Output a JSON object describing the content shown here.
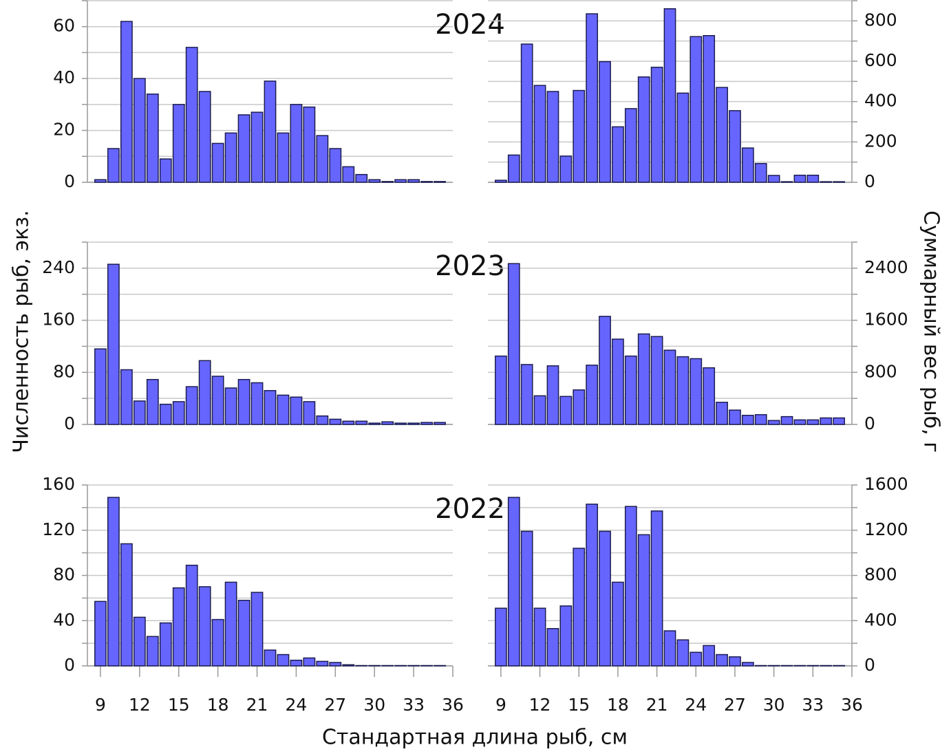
{
  "y_label_left": "Численность рыб, экз.",
  "y_label_right": "Суммарный вес рыб, г",
  "x_label": "Стандартная длина рыб, см",
  "chart_data": [
    {
      "type": "bar",
      "title": "2024",
      "yaxis_side": "left",
      "color": "#6666ff",
      "edge_color": "#1c1c50",
      "x": [
        9,
        10,
        11,
        12,
        13,
        14,
        15,
        16,
        17,
        18,
        19,
        20,
        21,
        22,
        23,
        24,
        25,
        26,
        27,
        28,
        29,
        30,
        31,
        32,
        33,
        34,
        35
      ],
      "values": [
        1,
        13,
        62,
        40,
        34,
        9,
        30,
        52,
        35,
        15,
        19,
        26,
        27,
        39,
        19,
        30,
        29,
        18,
        13,
        6,
        3,
        1,
        0.3,
        1,
        1,
        0.3,
        0.3
      ],
      "xlim": [
        8,
        36
      ],
      "ylim": [
        0,
        70
      ],
      "yticks": [
        0,
        20,
        40,
        60
      ],
      "y_minor_ticks": [
        10,
        30,
        50,
        70
      ],
      "grid": true
    },
    {
      "type": "bar",
      "yaxis_side": "right",
      "color": "#6666ff",
      "edge_color": "#1c1c50",
      "x": [
        9,
        10,
        11,
        12,
        13,
        14,
        15,
        16,
        17,
        18,
        19,
        20,
        21,
        22,
        23,
        24,
        25,
        26,
        27,
        28,
        29,
        30,
        31,
        32,
        33,
        34,
        35
      ],
      "values": [
        10,
        135,
        685,
        480,
        450,
        130,
        455,
        835,
        598,
        275,
        365,
        522,
        570,
        860,
        442,
        722,
        727,
        470,
        355,
        170,
        93,
        34,
        3,
        35,
        35,
        3,
        3
      ],
      "xlim": [
        8,
        36
      ],
      "ylim": [
        0,
        900
      ],
      "yticks": [
        0,
        200,
        400,
        600,
        800
      ],
      "y_minor_ticks": [
        100,
        300,
        500,
        700,
        900
      ],
      "grid": true
    },
    {
      "type": "bar",
      "title": "2023",
      "yaxis_side": "left",
      "color": "#6666ff",
      "edge_color": "#1c1c50",
      "x": [
        9,
        10,
        11,
        12,
        13,
        14,
        15,
        16,
        17,
        18,
        19,
        20,
        21,
        22,
        23,
        24,
        25,
        26,
        27,
        28,
        29,
        30,
        31,
        32,
        33,
        34,
        35
      ],
      "values": [
        116,
        246,
        84,
        36,
        69,
        31,
        35,
        58,
        98,
        74,
        56,
        69,
        64,
        52,
        45,
        42,
        35,
        13,
        8,
        5,
        5,
        2,
        4,
        2,
        2,
        3,
        3
      ],
      "xlim": [
        8,
        36
      ],
      "ylim": [
        0,
        280
      ],
      "yticks": [
        0,
        80,
        160,
        240
      ],
      "y_minor_ticks": [
        40,
        120,
        200,
        280
      ],
      "grid": true
    },
    {
      "type": "bar",
      "yaxis_side": "right",
      "color": "#6666ff",
      "edge_color": "#1c1c50",
      "x": [
        9,
        10,
        11,
        12,
        13,
        14,
        15,
        16,
        17,
        18,
        19,
        20,
        21,
        22,
        23,
        24,
        25,
        26,
        27,
        28,
        29,
        30,
        31,
        32,
        33,
        34,
        35
      ],
      "values": [
        1050,
        2470,
        920,
        440,
        900,
        430,
        530,
        910,
        1660,
        1310,
        1050,
        1390,
        1350,
        1140,
        1040,
        1010,
        870,
        340,
        220,
        140,
        150,
        60,
        120,
        70,
        70,
        100,
        100
      ],
      "xlim": [
        8,
        36
      ],
      "ylim": [
        0,
        2800
      ],
      "yticks": [
        0,
        800,
        1600,
        2400
      ],
      "y_minor_ticks": [
        400,
        1200,
        2000,
        2800
      ],
      "grid": true
    },
    {
      "type": "bar",
      "title": "2022",
      "yaxis_side": "left",
      "color": "#6666ff",
      "edge_color": "#1c1c50",
      "x": [
        9,
        10,
        11,
        12,
        13,
        14,
        15,
        16,
        17,
        18,
        19,
        20,
        21,
        22,
        23,
        24,
        25,
        26,
        27,
        28,
        29,
        30,
        31,
        32,
        33,
        34,
        35
      ],
      "values": [
        57,
        149,
        108,
        43,
        26,
        38,
        69,
        89,
        70,
        41,
        74,
        58,
        65,
        14,
        10,
        5,
        7,
        4,
        3,
        1,
        0.3,
        0.3,
        0.3,
        0.3,
        0.3,
        0.3,
        0.3
      ],
      "xlim": [
        8,
        36
      ],
      "xticks": [
        9,
        12,
        15,
        18,
        21,
        24,
        27,
        30,
        33,
        36
      ],
      "ylim": [
        0,
        160
      ],
      "yticks": [
        0,
        40,
        80,
        120,
        160
      ],
      "y_minor_ticks": [
        20,
        60,
        100,
        140
      ],
      "grid": true
    },
    {
      "type": "bar",
      "yaxis_side": "right",
      "color": "#6666ff",
      "edge_color": "#1c1c50",
      "x": [
        9,
        10,
        11,
        12,
        13,
        14,
        15,
        16,
        17,
        18,
        19,
        20,
        21,
        22,
        23,
        24,
        25,
        26,
        27,
        28,
        29,
        30,
        31,
        32,
        33,
        34,
        35
      ],
      "values": [
        510,
        1490,
        1190,
        510,
        330,
        530,
        1040,
        1430,
        1190,
        740,
        1410,
        1160,
        1370,
        310,
        230,
        120,
        180,
        100,
        80,
        30,
        3,
        3,
        3,
        3,
        3,
        3,
        3
      ],
      "xlim": [
        8,
        36
      ],
      "xticks": [
        9,
        12,
        15,
        18,
        21,
        24,
        27,
        30,
        33,
        36
      ],
      "ylim": [
        0,
        1600
      ],
      "yticks": [
        0,
        400,
        800,
        1200,
        1600
      ],
      "y_minor_ticks": [
        200,
        600,
        1000,
        1400
      ],
      "grid": true
    }
  ]
}
